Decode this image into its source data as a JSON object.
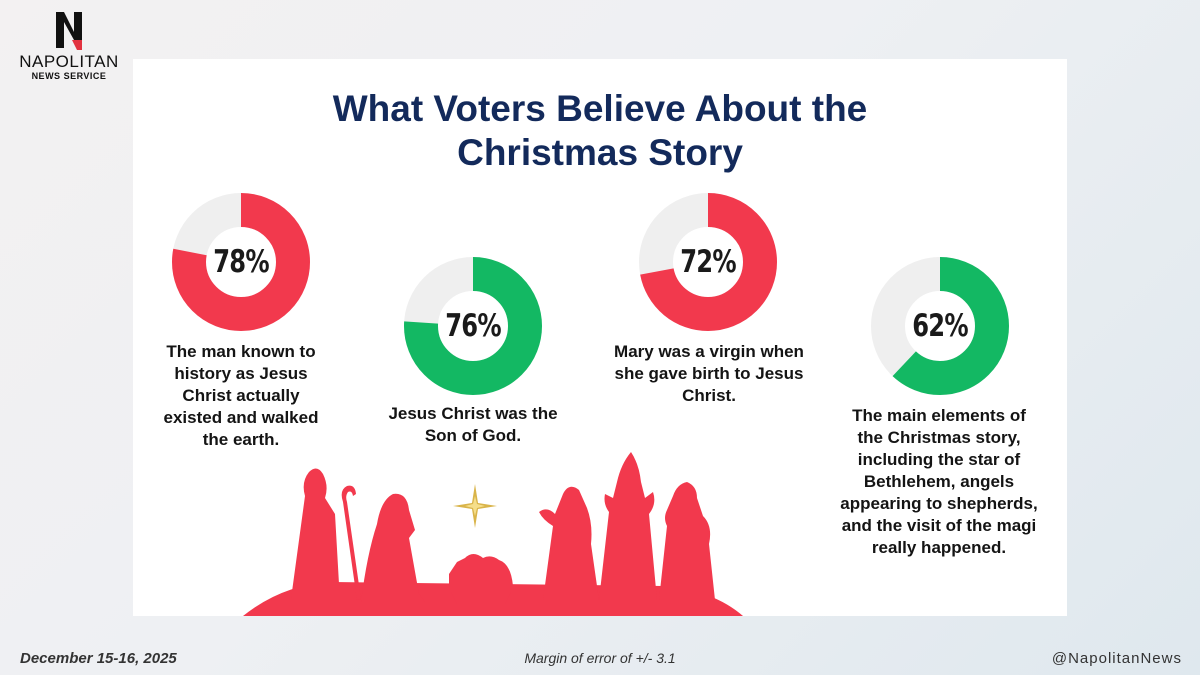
{
  "logo": {
    "name": "NAPOLITAN",
    "sub": "NEWS SERVICE"
  },
  "title_line1": "What Voters Believe About the",
  "title_line2": "Christmas Story",
  "chart_data": {
    "type": "donut",
    "series": [
      {
        "value": 78,
        "label": "78%",
        "color": "#f2394d",
        "caption": "The man known to history as Jesus Christ actually existed and walked the earth."
      },
      {
        "value": 76,
        "label": "76%",
        "color": "#13b863",
        "caption": "Jesus Christ was the Son of God."
      },
      {
        "value": 72,
        "label": "72%",
        "color": "#f2394d",
        "caption": "Mary was a virgin when she gave birth to Jesus Christ."
      },
      {
        "value": 62,
        "label": "62%",
        "color": "#13b863",
        "caption": "The main elements of the Christmas story, including the star of Bethlehem, angels appearing to shepherds, and the visit of the magi really happened."
      }
    ],
    "remainder_color": "#efefef"
  },
  "footer": {
    "date": "December 15-16, 2025",
    "moe": "Margin of error of +/- 3.1",
    "handle": "@NapolitanNews"
  }
}
